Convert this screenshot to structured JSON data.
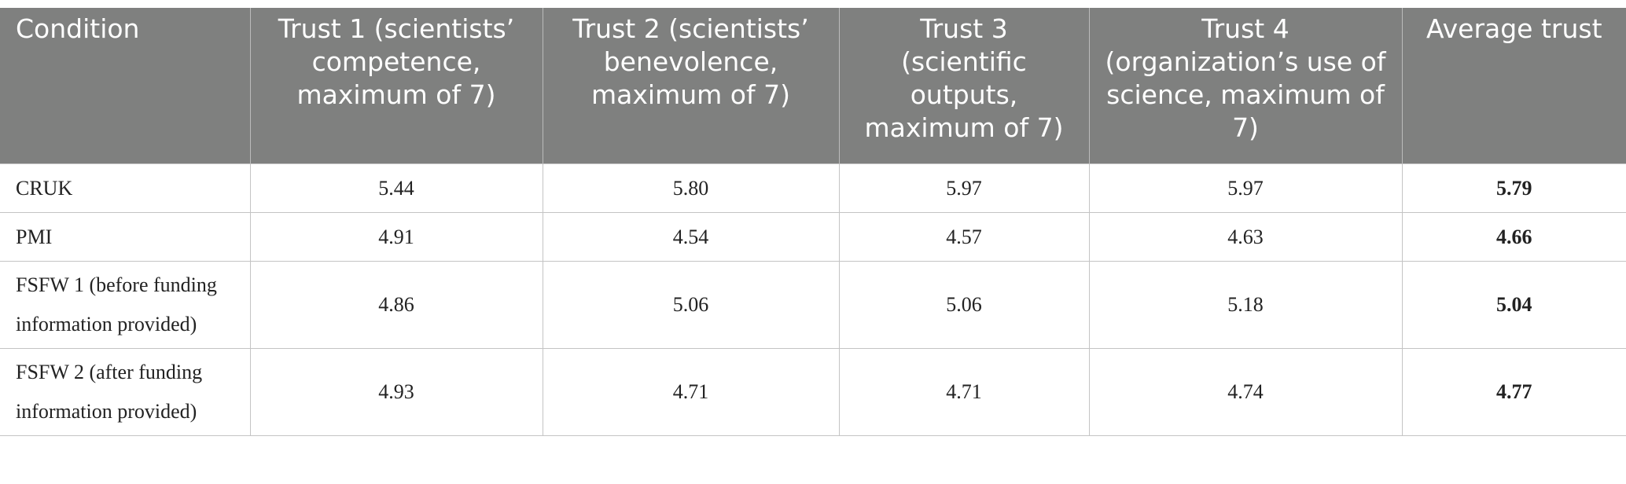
{
  "table": {
    "header": [
      "Condition",
      "Trust 1 (scientists’ competence, maximum of 7)",
      "Trust 2 (scientists’ benevolence, maximum of 7)",
      "Trust 3 (scientific outputs, maximum of 7)",
      "Trust 4 (organization’s use of science, maximum of 7)",
      "Average trust"
    ],
    "rows": [
      [
        "CRUK",
        "5.44",
        "5.80",
        "5.97",
        "5.97",
        "5.79"
      ],
      [
        "PMI",
        "4.91",
        "4.54",
        "4.57",
        "4.63",
        "4.66"
      ],
      [
        "FSFW 1 (before funding information provided)",
        "4.86",
        "5.06",
        "5.06",
        "5.18",
        "5.04"
      ],
      [
        "FSFW 2 (after funding information provided)",
        "4.93",
        "4.71",
        "4.71",
        "4.74",
        "4.77"
      ]
    ]
  }
}
